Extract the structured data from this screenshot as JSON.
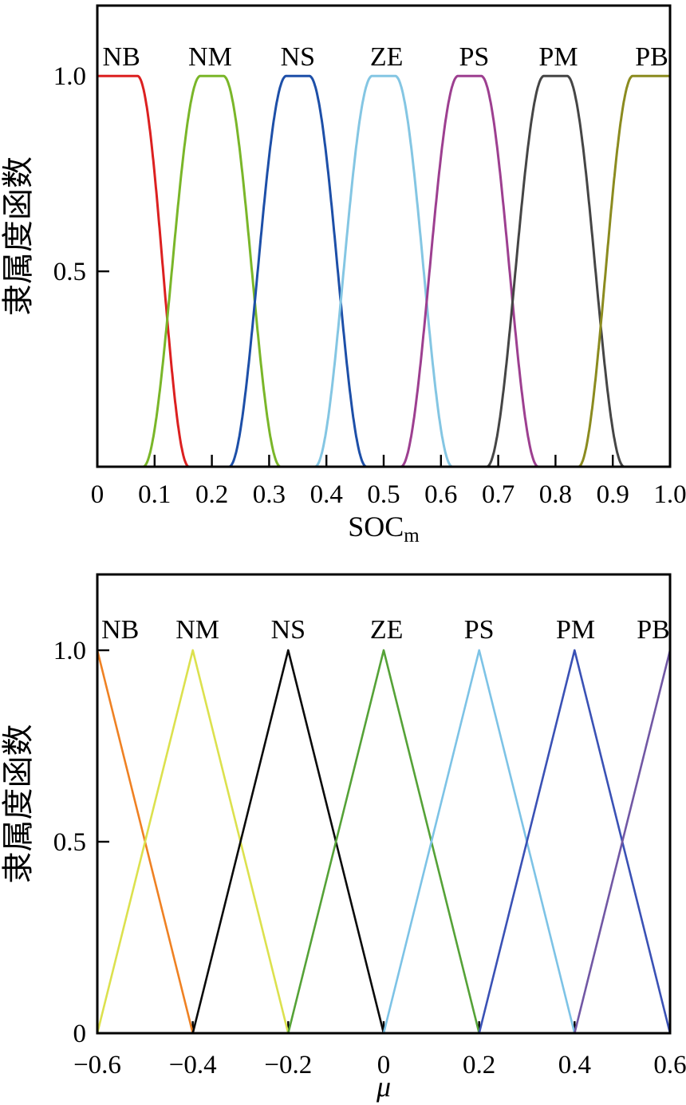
{
  "figure": {
    "background": "#ffffff",
    "axis_color": "#000000"
  },
  "chart_data": [
    {
      "type": "line",
      "id": "soc-membership",
      "mf_shape": "smooth_trapezoid",
      "title": "",
      "xlabel": "SOC",
      "xlabel_sub": "m",
      "xlabel_italic": false,
      "ylabel": "隶属度函数",
      "xlim": [
        0,
        1.0
      ],
      "ylim": [
        0,
        1.18
      ],
      "grid": false,
      "legend_position": "labels-above-peaks",
      "xticks": [
        {
          "v": 0.0,
          "label": "0",
          "tick": false
        },
        {
          "v": 0.1,
          "label": "0.1",
          "tick": true
        },
        {
          "v": 0.2,
          "label": "0.2",
          "tick": true
        },
        {
          "v": 0.3,
          "label": "0.3",
          "tick": true
        },
        {
          "v": 0.4,
          "label": "0.4",
          "tick": true
        },
        {
          "v": 0.5,
          "label": "0.5",
          "tick": true
        },
        {
          "v": 0.6,
          "label": "0.6",
          "tick": true
        },
        {
          "v": 0.7,
          "label": "0.7",
          "tick": true
        },
        {
          "v": 0.8,
          "label": "0.8",
          "tick": true
        },
        {
          "v": 0.9,
          "label": "0.9",
          "tick": true
        },
        {
          "v": 1.0,
          "label": "1.0",
          "tick": false
        }
      ],
      "yticks": [
        {
          "v": 1.0,
          "label": "1.0",
          "tick": true
        },
        {
          "v": 0.5,
          "label": "0.5",
          "tick": true
        }
      ],
      "series": [
        {
          "name": "NB",
          "color": "#dc2020",
          "breakpoints": [
            -1.0,
            -0.5,
            0.07,
            0.16
          ],
          "label_x": 0.042
        },
        {
          "name": "NM",
          "color": "#7ab629",
          "breakpoints": [
            0.08,
            0.18,
            0.22,
            0.32
          ],
          "label_x": 0.197
        },
        {
          "name": "NS",
          "color": "#1d4fa8",
          "breakpoints": [
            0.23,
            0.33,
            0.37,
            0.47
          ],
          "label_x": 0.35
        },
        {
          "name": "ZE",
          "color": "#84c6e3",
          "breakpoints": [
            0.38,
            0.48,
            0.52,
            0.62
          ],
          "label_x": 0.505
        },
        {
          "name": "PS",
          "color": "#9d3f90",
          "breakpoints": [
            0.53,
            0.63,
            0.67,
            0.77
          ],
          "label_x": 0.658
        },
        {
          "name": "PM",
          "color": "#454545",
          "breakpoints": [
            0.68,
            0.78,
            0.82,
            0.92
          ],
          "label_x": 0.805
        },
        {
          "name": "PB",
          "color": "#8b8b1f",
          "breakpoints": [
            0.84,
            0.935,
            1.5,
            2.0
          ],
          "label_x": 0.968
        }
      ]
    },
    {
      "type": "line",
      "id": "mu-membership",
      "mf_shape": "triangle",
      "title": "",
      "xlabel": "μ",
      "xlabel_sub": "",
      "xlabel_italic": true,
      "ylabel": "隶属度函数",
      "xlim": [
        -0.6,
        0.6
      ],
      "ylim": [
        0,
        1.198
      ],
      "grid": false,
      "legend_position": "labels-above-peaks",
      "xticks": [
        {
          "v": -0.6,
          "label": "−0.6",
          "tick": false
        },
        {
          "v": -0.4,
          "label": "−0.4",
          "tick": true
        },
        {
          "v": -0.2,
          "label": "−0.2",
          "tick": true
        },
        {
          "v": 0.0,
          "label": "0",
          "tick": true
        },
        {
          "v": 0.2,
          "label": "0.2",
          "tick": true
        },
        {
          "v": 0.4,
          "label": "0.4",
          "tick": true
        },
        {
          "v": 0.6,
          "label": "0.6",
          "tick": false
        }
      ],
      "yticks": [
        {
          "v": 1.0,
          "label": "1.0",
          "tick": true
        },
        {
          "v": 0.5,
          "label": "0.5",
          "tick": true
        },
        {
          "v": 0.0,
          "label": "0",
          "tick": false
        }
      ],
      "series": [
        {
          "name": "NB",
          "color": "#ef8123",
          "points": [
            [
              -0.6,
              1
            ],
            [
              -0.4,
              0
            ]
          ],
          "label_x": -0.552
        },
        {
          "name": "NM",
          "color": "#dce14e",
          "points": [
            [
              -0.6,
              0
            ],
            [
              -0.4,
              1
            ],
            [
              -0.2,
              0
            ]
          ],
          "label_x": -0.39
        },
        {
          "name": "NS",
          "color": "#0a0a0a",
          "points": [
            [
              -0.4,
              0
            ],
            [
              -0.2,
              1
            ],
            [
              0,
              0
            ]
          ],
          "label_x": -0.2
        },
        {
          "name": "ZE",
          "color": "#55a237",
          "points": [
            [
              -0.2,
              0
            ],
            [
              0,
              1
            ],
            [
              0.2,
              0
            ]
          ],
          "label_x": 0.006
        },
        {
          "name": "PS",
          "color": "#7dc3e6",
          "points": [
            [
              0,
              0
            ],
            [
              0.2,
              1
            ],
            [
              0.4,
              0
            ]
          ],
          "label_x": 0.2
        },
        {
          "name": "PM",
          "color": "#3a51b5",
          "points": [
            [
              0.2,
              0
            ],
            [
              0.4,
              1
            ],
            [
              0.6,
              0
            ]
          ],
          "label_x": 0.402
        },
        {
          "name": "PB",
          "color": "#7157a4",
          "points": [
            [
              0.4,
              0
            ],
            [
              0.6,
              1
            ]
          ],
          "label_x": 0.565
        }
      ]
    }
  ]
}
